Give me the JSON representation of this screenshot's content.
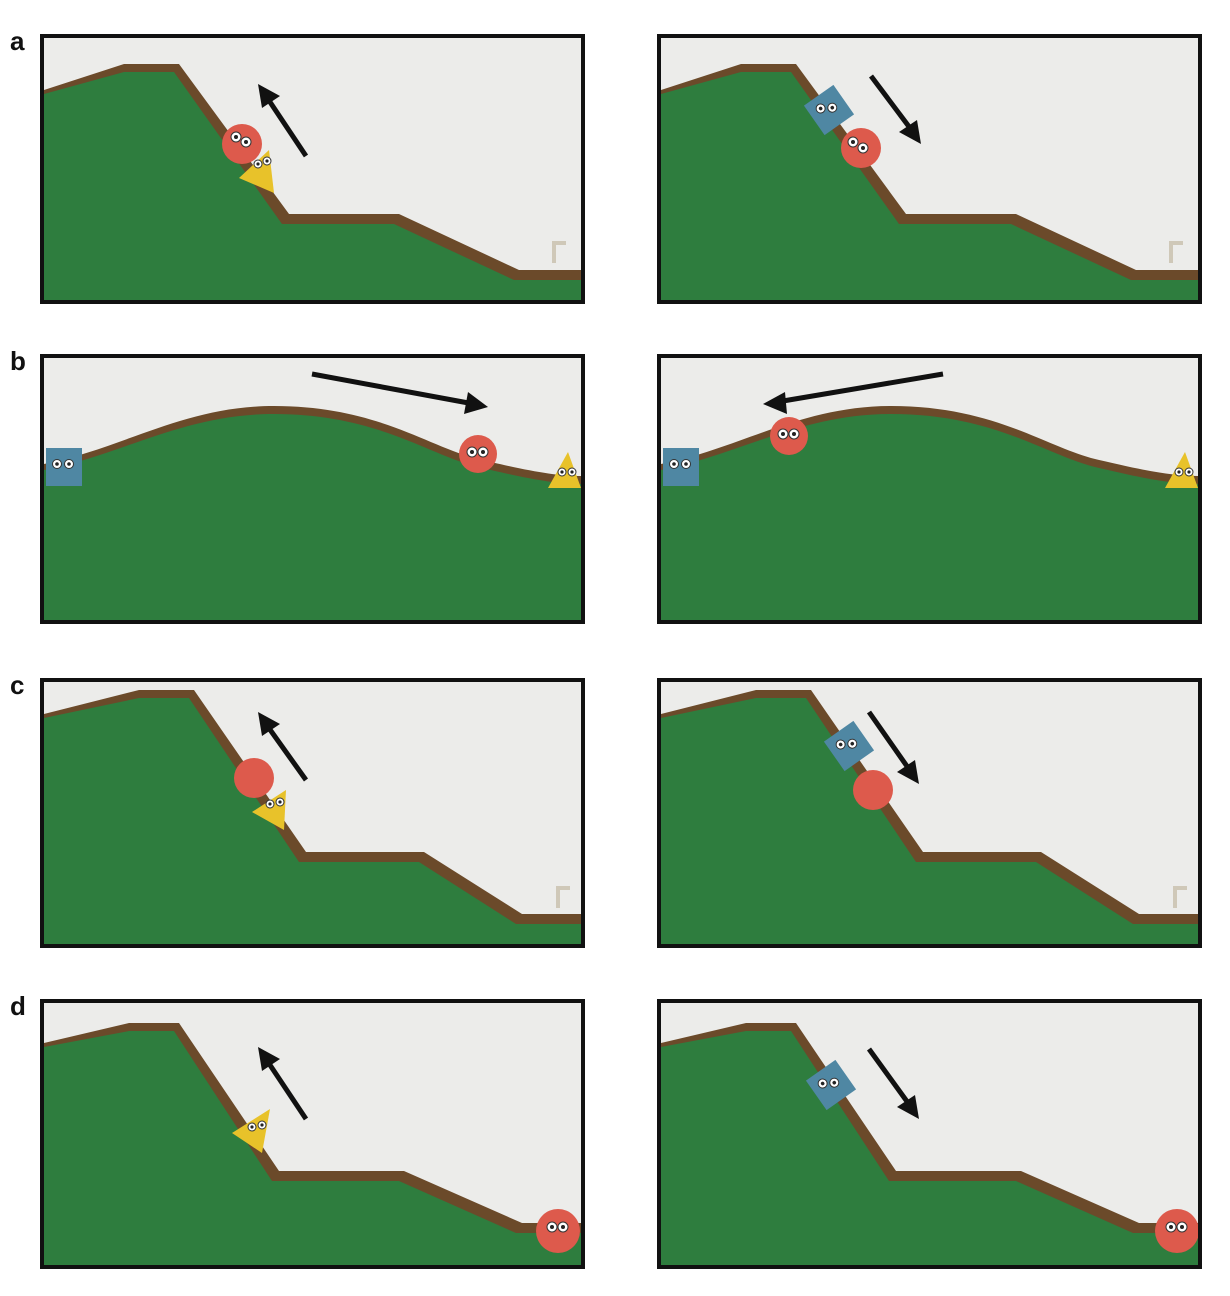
{
  "figure": {
    "rows": [
      {
        "label": "a",
        "panels": [
          {
            "scene": "steep-hill",
            "arrow": "up-left",
            "agents": [
              "red-circle",
              "yellow-triangle"
            ]
          },
          {
            "scene": "steep-hill",
            "arrow": "down-right",
            "agents": [
              "blue-square",
              "red-circle"
            ]
          }
        ]
      },
      {
        "label": "b",
        "panels": [
          {
            "scene": "gentle-hill",
            "arrow": "right",
            "agents": [
              "blue-square",
              "red-circle",
              "yellow-triangle"
            ]
          },
          {
            "scene": "gentle-hill",
            "arrow": "left",
            "agents": [
              "blue-square",
              "red-circle",
              "yellow-triangle"
            ]
          }
        ]
      },
      {
        "label": "c",
        "panels": [
          {
            "scene": "steep-hill",
            "arrow": "up-left",
            "agents": [
              "red-circle-no-eyes",
              "yellow-triangle"
            ]
          },
          {
            "scene": "steep-hill",
            "arrow": "down-right",
            "agents": [
              "blue-square",
              "red-circle-no-eyes"
            ]
          }
        ]
      },
      {
        "label": "d",
        "panels": [
          {
            "scene": "steep-hill",
            "arrow": "up-left",
            "agents": [
              "yellow-triangle",
              "red-circle"
            ]
          },
          {
            "scene": "steep-hill",
            "arrow": "down-right",
            "agents": [
              "blue-square",
              "red-circle"
            ]
          }
        ]
      }
    ],
    "colors": {
      "hill": "#2e7d3e",
      "hill_dark": "#256a33",
      "trim": "#6b4a2a",
      "background": "#ececea",
      "red_agent": "#dd5a4c",
      "yellow_agent": "#e8c22a",
      "blue_agent": "#4f87a3",
      "arrow": "#111111"
    }
  }
}
